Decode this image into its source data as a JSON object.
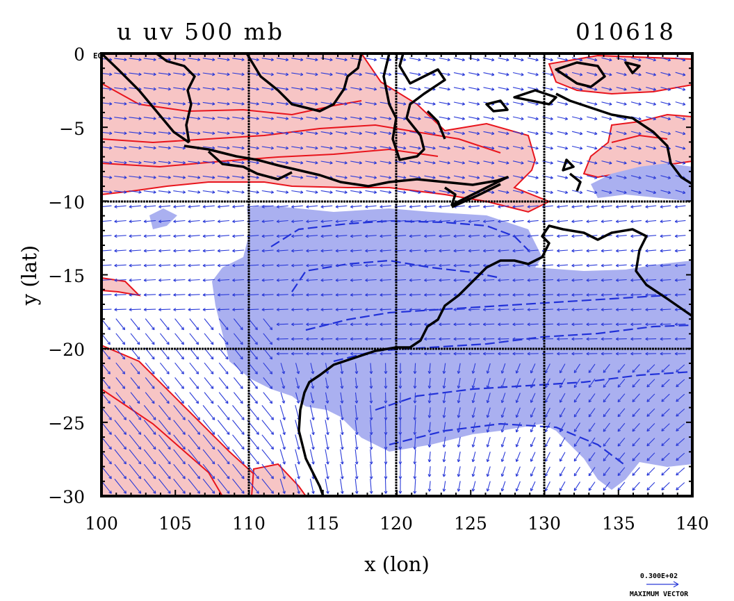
{
  "title_left": "u uv 500 mb",
  "title_right": "010618",
  "axes": {
    "xlabel": "x (lon)",
    "ylabel": "y (lat)",
    "xlim": [
      100,
      140
    ],
    "ylim": [
      -30,
      0
    ],
    "x_ticks": [
      "100",
      "105",
      "110",
      "115",
      "120",
      "125",
      "130",
      "135",
      "140"
    ],
    "y_ticks": [
      "0",
      "−5",
      "−10",
      "−15",
      "−20",
      "−25",
      "−30"
    ],
    "eq_label": "EQ",
    "grid": true,
    "grid_lon": [
      110,
      120,
      130
    ],
    "grid_lat": [
      -10,
      -20
    ]
  },
  "legend": {
    "value": "0.300E+02",
    "label": "MAXIMUM VECTOR"
  },
  "colors": {
    "positive_fill": "#f7c5c5",
    "positive_contour": "#e8141c",
    "negative_fill": "#aab0f0",
    "negative_contour": "#2030d8",
    "vector": "#2a3ad8",
    "coastline": "#000000"
  }
}
